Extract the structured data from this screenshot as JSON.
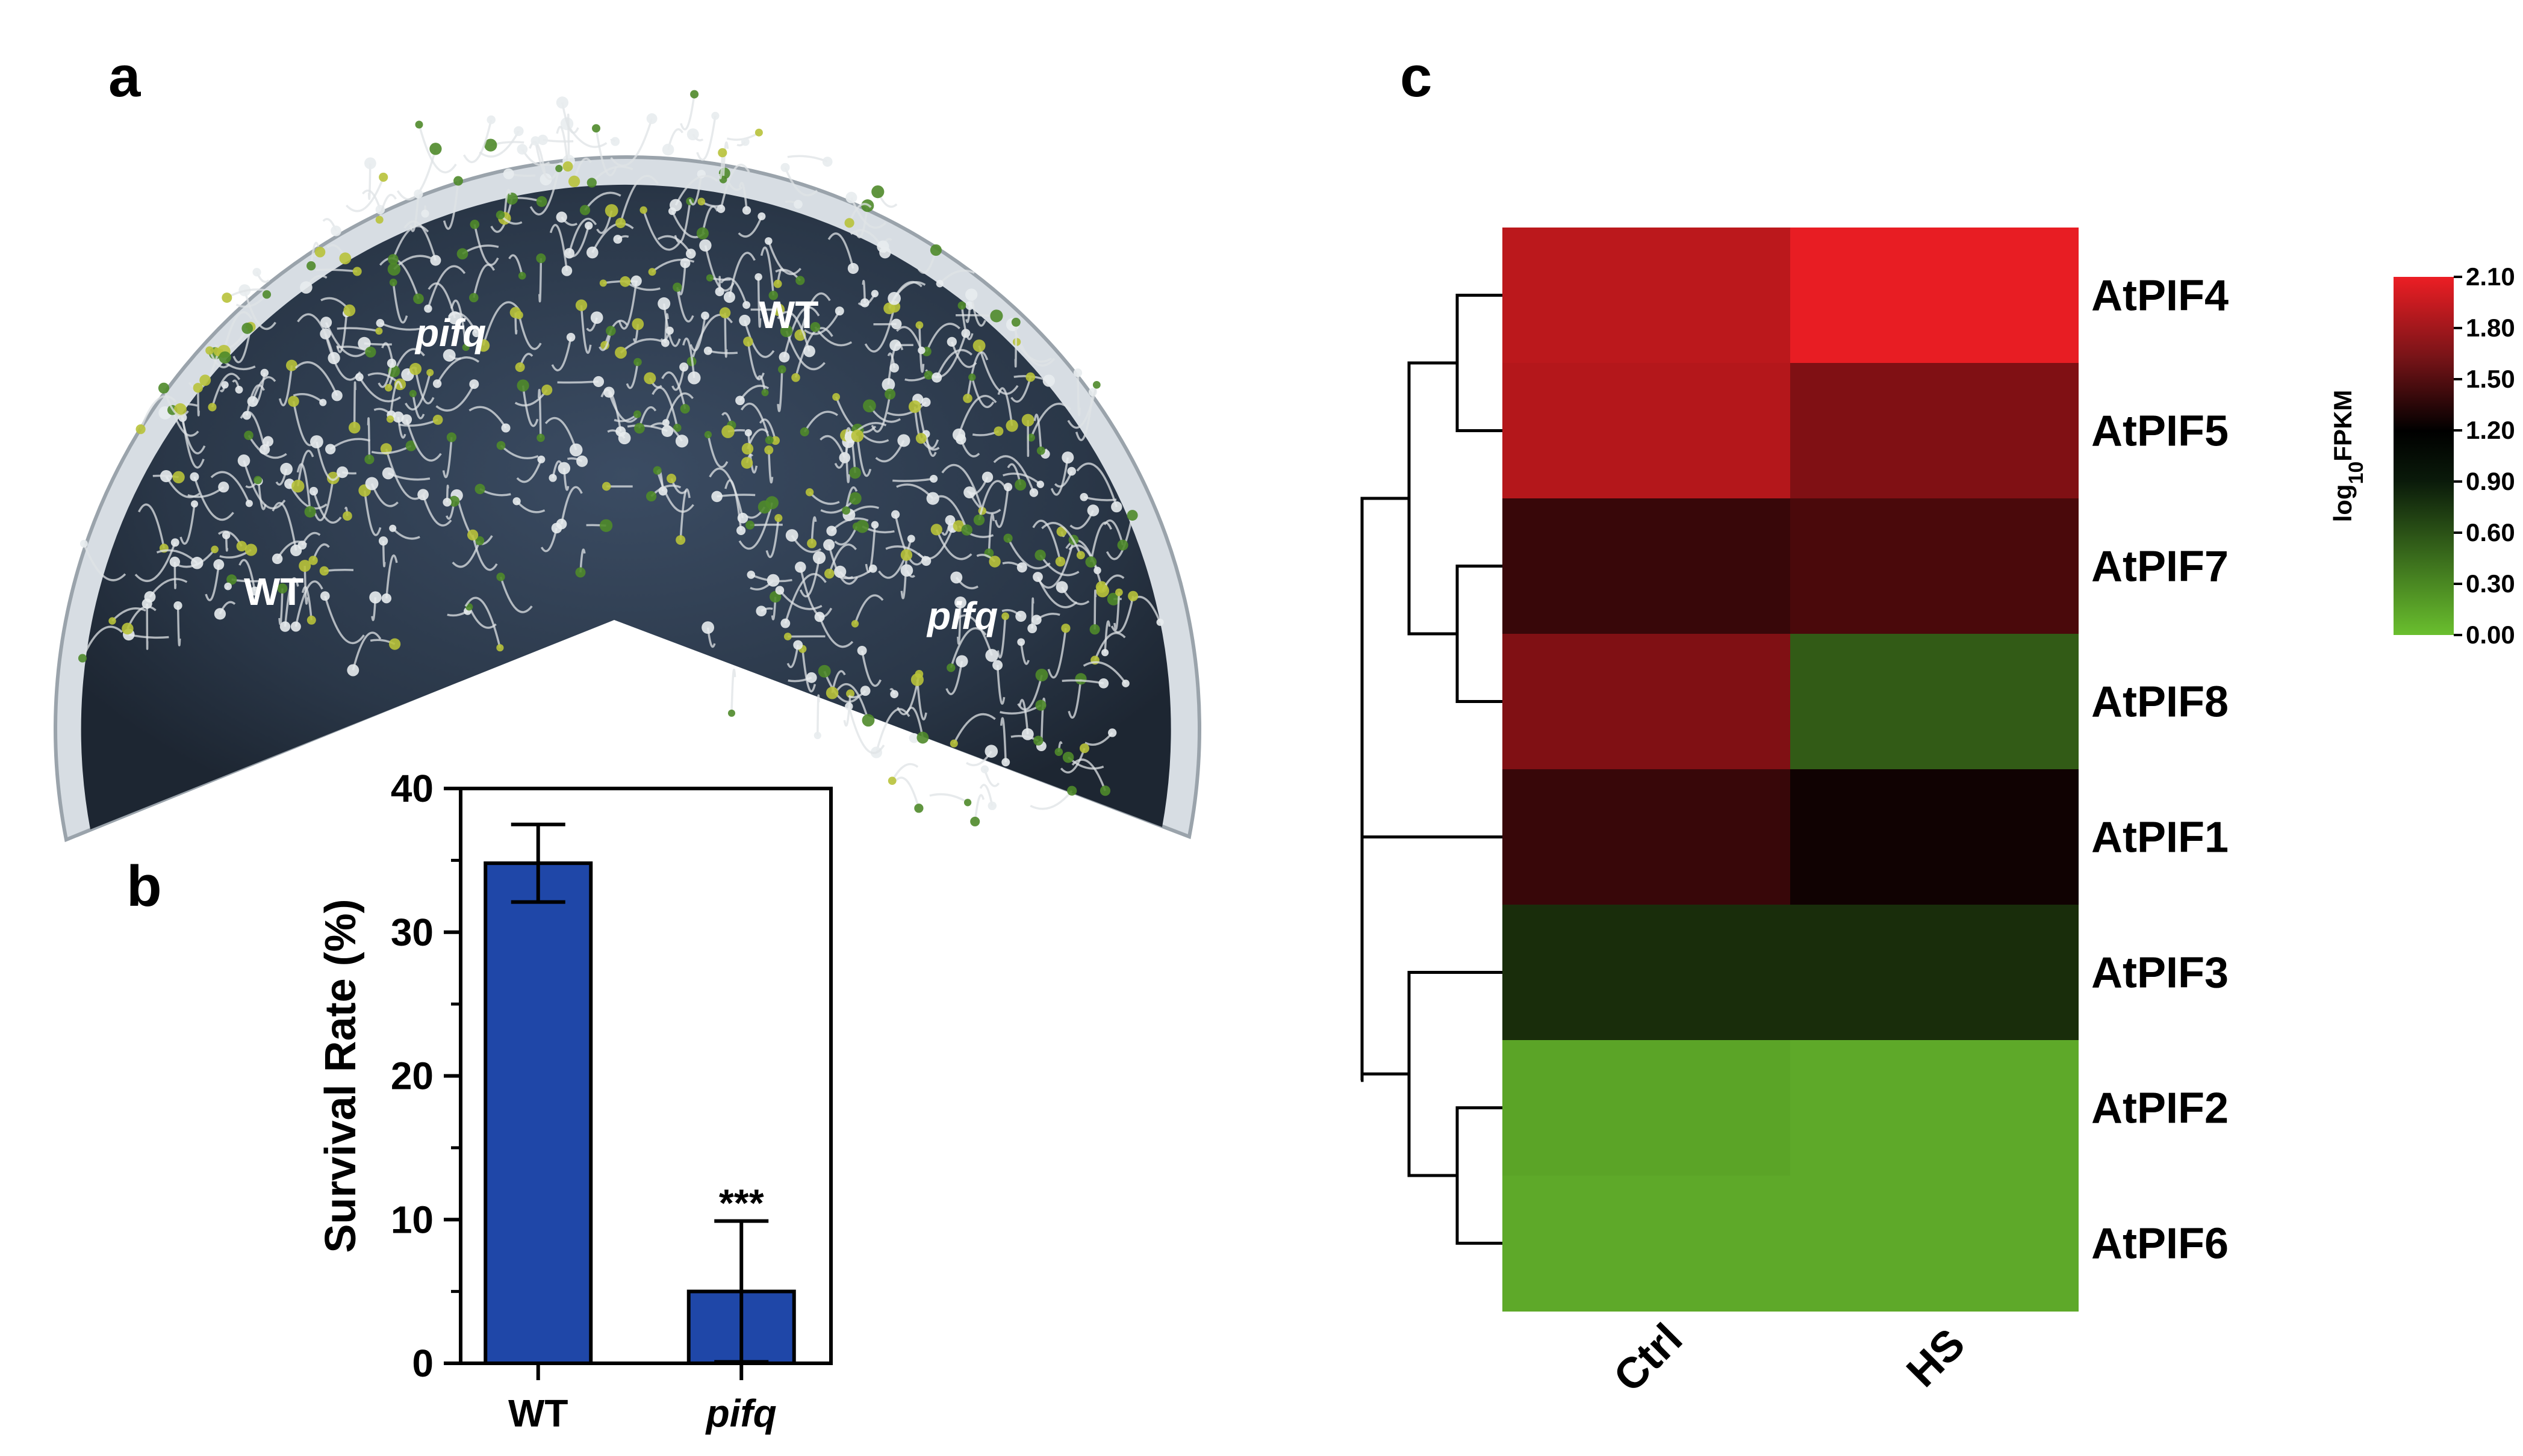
{
  "panels": {
    "a": {
      "label": "a",
      "plate_labels": [
        {
          "text": "pifq",
          "italic": true
        },
        {
          "text": "WT",
          "italic": false
        },
        {
          "text": "WT",
          "italic": false
        },
        {
          "text": "pifq",
          "italic": true
        }
      ]
    },
    "b": {
      "label": "b"
    },
    "c": {
      "label": "c"
    }
  },
  "chart_data": [
    {
      "type": "bar",
      "panel": "b",
      "categories": [
        "WT",
        "pifq"
      ],
      "category_italic": [
        false,
        true
      ],
      "values": [
        34.8,
        5.0
      ],
      "errors": [
        2.7,
        4.9
      ],
      "significance": [
        "",
        "***"
      ],
      "ylabel": "Survival Rate (%)",
      "ylim": [
        0,
        40
      ],
      "yticks": [
        "0",
        "10",
        "20",
        "30",
        "40"
      ],
      "bar_color": "#1f47a8"
    },
    {
      "type": "heatmap",
      "panel": "c",
      "columns": [
        "Ctrl",
        "HS"
      ],
      "rows": [
        "AtPIF4",
        "AtPIF5",
        "AtPIF7",
        "AtPIF8",
        "AtPIF1",
        "AtPIF3",
        "AtPIF2",
        "AtPIF6"
      ],
      "values": [
        [
          1.88,
          2.08
        ],
        [
          1.85,
          1.62
        ],
        [
          1.3,
          1.38
        ],
        [
          1.62,
          0.55
        ],
        [
          1.3,
          1.12
        ],
        [
          0.8,
          0.8
        ],
        [
          0.15,
          0.12
        ],
        [
          0.12,
          0.12
        ]
      ],
      "colorbar": {
        "title": "log10FPKM",
        "title_base": "log",
        "title_subscript": "10",
        "title_rest": "FPKM",
        "range": [
          0,
          2.1
        ],
        "ticks": [
          "2.10",
          "1.80",
          "1.50",
          "1.20",
          "0.90",
          "0.60",
          "0.30",
          "0.00"
        ],
        "colors": {
          "low": "#6abf2e",
          "mid": "#000000",
          "high": "#ec1e24"
        }
      },
      "dendrogram": "left"
    }
  ]
}
